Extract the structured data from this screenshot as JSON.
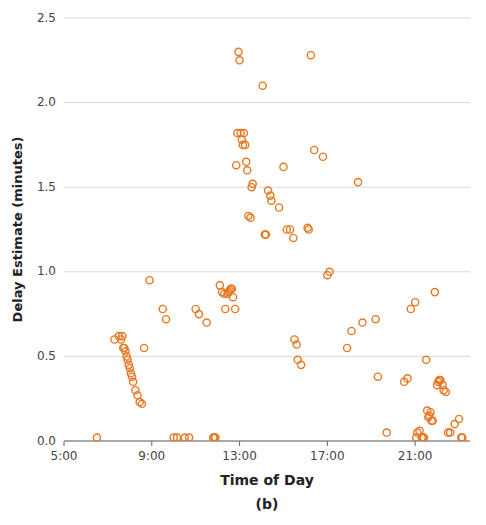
{
  "chart_data": {
    "type": "scatter",
    "xlabel": "Time of Day",
    "ylabel": "Delay Estimate (minutes)",
    "annotations": [
      "(b)"
    ],
    "color": "#E87722",
    "marker": "circle",
    "grid": "y",
    "xlim": [
      5.0,
      23.5
    ],
    "ylim": [
      0.0,
      2.5
    ],
    "xticks": [
      {
        "value": 5.0,
        "label": "5:00"
      },
      {
        "value": 9.0,
        "label": "9:00"
      },
      {
        "value": 13.0,
        "label": "13:00"
      },
      {
        "value": 17.0,
        "label": "17:00"
      },
      {
        "value": 21.0,
        "label": "21:00"
      }
    ],
    "yticks": [
      {
        "value": 0.0,
        "label": "0.0"
      },
      0.5,
      {
        "value": 1.0,
        "label": "1.0"
      },
      1.5,
      {
        "value": 2.0,
        "label": "2.0"
      },
      2.5
    ],
    "x": [
      6.5,
      7.3,
      7.5,
      7.6,
      7.65,
      7.7,
      7.75,
      7.8,
      7.85,
      7.9,
      7.95,
      8.0,
      8.05,
      8.1,
      8.15,
      8.25,
      8.35,
      8.45,
      8.55,
      8.65,
      8.9,
      9.5,
      9.65,
      10.0,
      10.15,
      10.5,
      10.7,
      11.0,
      11.15,
      11.5,
      11.8,
      11.85,
      11.9,
      12.1,
      12.2,
      12.3,
      12.35,
      12.45,
      12.5,
      12.55,
      12.6,
      12.65,
      12.7,
      12.8,
      12.85,
      12.9,
      12.95,
      13.0,
      13.05,
      13.1,
      13.15,
      13.2,
      13.25,
      13.3,
      13.35,
      13.4,
      13.5,
      13.55,
      13.6,
      14.05,
      14.15,
      14.2,
      14.3,
      14.4,
      14.45,
      14.8,
      15.0,
      15.15,
      15.3,
      15.45,
      15.5,
      15.6,
      15.65,
      15.8,
      16.1,
      16.15,
      16.25,
      16.4,
      16.8,
      17.0,
      17.1,
      17.9,
      18.1,
      18.4,
      18.6,
      19.2,
      19.3,
      19.7,
      20.5,
      20.65,
      20.8,
      21.0,
      21.05,
      21.1,
      21.2,
      21.3,
      21.35,
      21.4,
      21.5,
      21.55,
      21.6,
      21.65,
      21.7,
      21.75,
      21.8,
      21.9,
      22.0,
      22.05,
      22.1,
      22.15,
      22.25,
      22.3,
      22.4,
      22.5,
      22.6,
      22.8,
      23.0,
      23.1,
      23.15
    ],
    "values": [
      0.02,
      0.6,
      0.62,
      0.6,
      0.62,
      0.55,
      0.55,
      0.53,
      0.5,
      0.48,
      0.45,
      0.43,
      0.4,
      0.38,
      0.35,
      0.3,
      0.27,
      0.23,
      0.22,
      0.55,
      0.95,
      0.78,
      0.72,
      0.02,
      0.02,
      0.02,
      0.02,
      0.78,
      0.75,
      0.7,
      0.02,
      0.02,
      0.02,
      0.92,
      0.88,
      0.87,
      0.78,
      0.87,
      0.88,
      0.89,
      0.9,
      0.9,
      0.85,
      0.78,
      1.63,
      1.82,
      2.3,
      2.25,
      1.82,
      1.78,
      1.75,
      1.82,
      1.75,
      1.65,
      1.6,
      1.33,
      1.32,
      1.5,
      1.52,
      2.1,
      1.22,
      1.22,
      1.48,
      1.45,
      1.42,
      1.38,
      1.62,
      1.25,
      1.25,
      1.2,
      0.6,
      0.57,
      0.48,
      0.45,
      1.26,
      1.25,
      2.28,
      1.72,
      1.68,
      0.98,
      1.0,
      0.55,
      0.65,
      1.53,
      0.7,
      0.72,
      0.38,
      0.05,
      0.35,
      0.37,
      0.78,
      0.82,
      0.02,
      0.05,
      0.06,
      0.02,
      0.02,
      0.02,
      0.48,
      0.18,
      0.14,
      0.15,
      0.17,
      0.12,
      0.12,
      0.88,
      0.33,
      0.35,
      0.36,
      0.36,
      0.33,
      0.3,
      0.29,
      0.05,
      0.05,
      0.1,
      0.13,
      0.02,
      0.02
    ]
  }
}
